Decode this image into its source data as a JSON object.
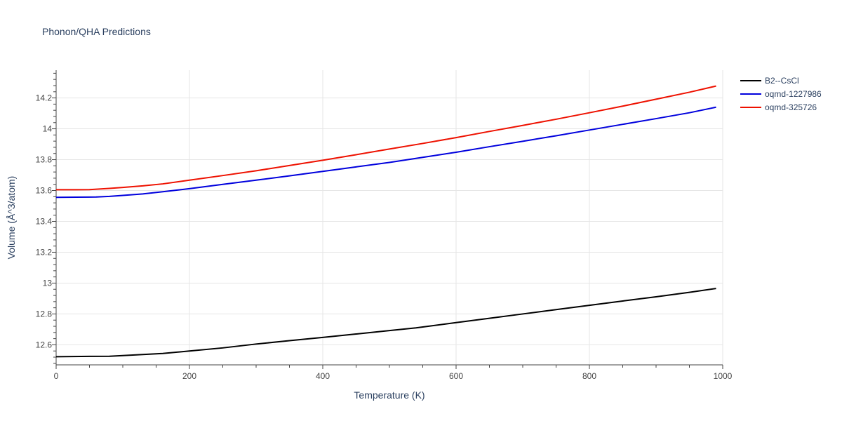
{
  "chart_data": {
    "type": "line",
    "title": "Phonon/QHA Predictions",
    "xlabel": "Temperature (K)",
    "ylabel": "Volume (Å^3/atom)",
    "xlim": [
      0,
      1000
    ],
    "ylim": [
      12.47,
      14.38
    ],
    "xticks": [
      0,
      200,
      400,
      600,
      800,
      1000
    ],
    "yticks": [
      12.6,
      12.8,
      13,
      13.2,
      13.4,
      13.6,
      13.8,
      14,
      14.2
    ],
    "ytick_labels": [
      "12.6",
      "12.8",
      "13",
      "13.2",
      "13.4",
      "13.6",
      "13.8",
      "14",
      "14.2"
    ],
    "grid": true,
    "legend_position": "top-right",
    "series": [
      {
        "name": "B2--CsCl",
        "color": "#000000",
        "x": [
          0,
          50,
          80,
          100,
          130,
          160,
          200,
          250,
          300,
          350,
          400,
          450,
          500,
          540,
          600,
          650,
          700,
          750,
          800,
          850,
          900,
          950,
          990
        ],
        "y": [
          12.523,
          12.525,
          12.526,
          12.53,
          12.537,
          12.544,
          12.56,
          12.58,
          12.605,
          12.627,
          12.648,
          12.67,
          12.692,
          12.71,
          12.744,
          12.772,
          12.8,
          12.828,
          12.856,
          12.884,
          12.911,
          12.94,
          12.965
        ]
      },
      {
        "name": "oqmd-1227986",
        "color": "#0000dd",
        "x": [
          0,
          30,
          60,
          80,
          100,
          130,
          160,
          200,
          250,
          300,
          350,
          400,
          450,
          500,
          550,
          600,
          650,
          700,
          750,
          800,
          850,
          900,
          950,
          990
        ],
        "y": [
          13.556,
          13.557,
          13.558,
          13.562,
          13.568,
          13.578,
          13.592,
          13.612,
          13.64,
          13.667,
          13.695,
          13.724,
          13.753,
          13.782,
          13.815,
          13.848,
          13.884,
          13.919,
          13.955,
          13.992,
          14.029,
          14.066,
          14.104,
          14.14
        ]
      },
      {
        "name": "oqmd-325726",
        "color": "#ee1100",
        "x": [
          0,
          30,
          50,
          80,
          100,
          130,
          160,
          200,
          250,
          300,
          350,
          400,
          450,
          500,
          550,
          600,
          650,
          700,
          750,
          800,
          850,
          900,
          950,
          990
        ],
        "y": [
          13.605,
          13.605,
          13.606,
          13.614,
          13.62,
          13.63,
          13.643,
          13.667,
          13.697,
          13.728,
          13.762,
          13.796,
          13.832,
          13.869,
          13.905,
          13.943,
          13.983,
          14.022,
          14.062,
          14.104,
          14.147,
          14.192,
          14.237,
          14.277
        ]
      }
    ]
  }
}
